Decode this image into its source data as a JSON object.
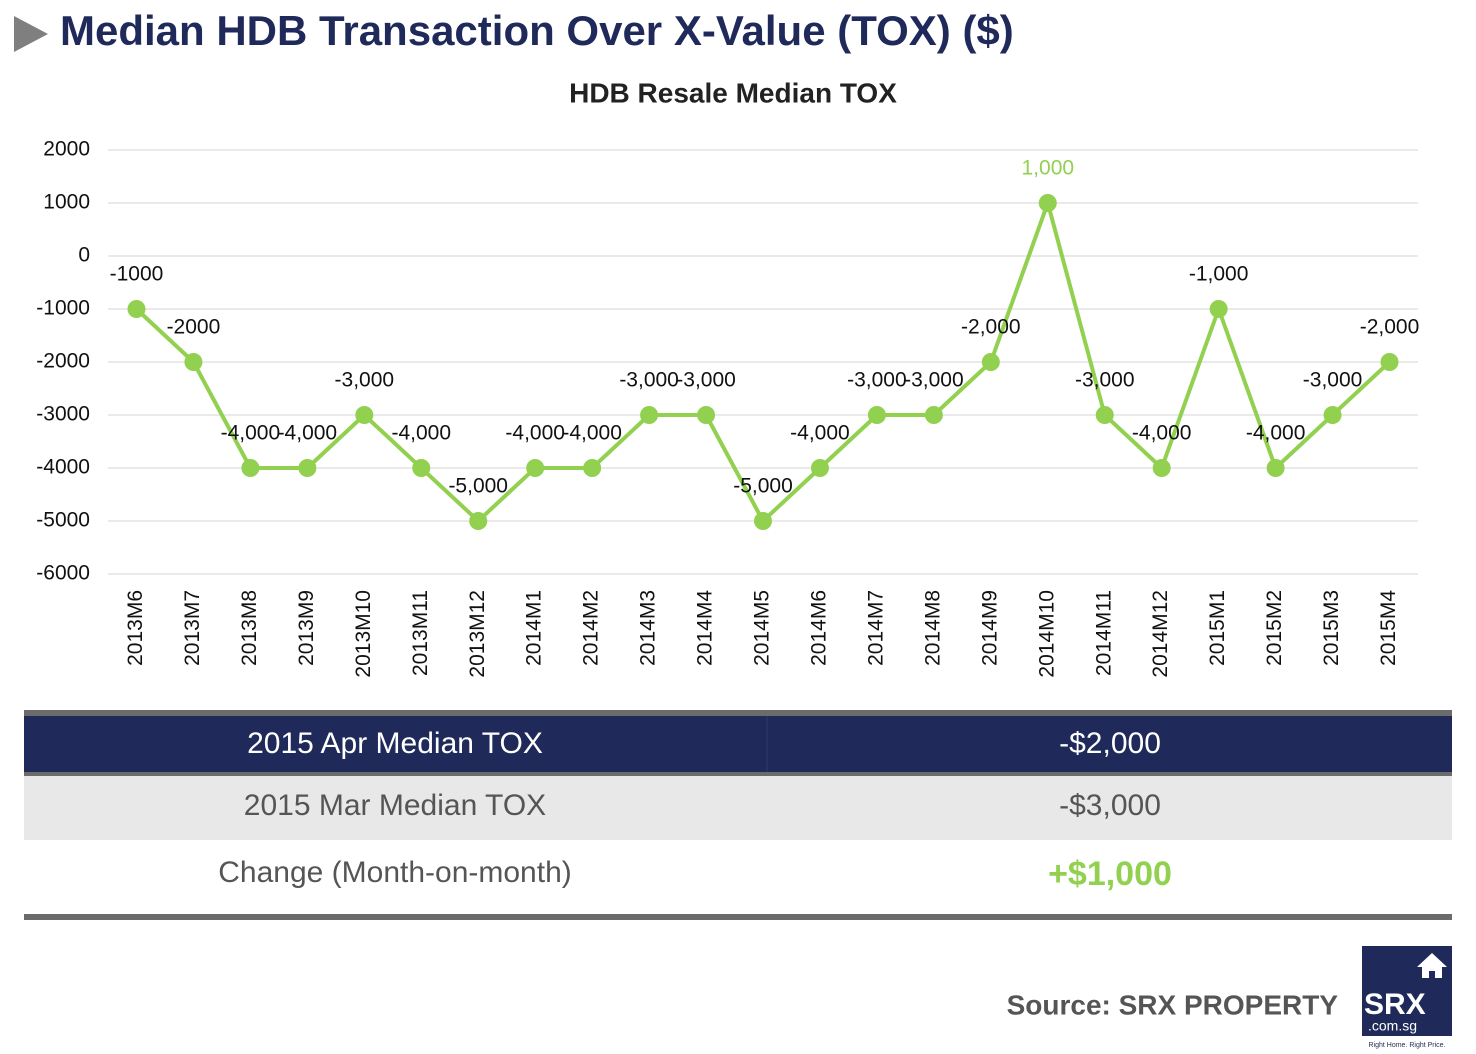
{
  "header": {
    "title": "Median HDB Transaction Over X-Value (TOX) ($)"
  },
  "chart_data": {
    "type": "line",
    "title": "HDB Resale Median TOX",
    "categories": [
      "2013M6",
      "2013M7",
      "2013M8",
      "2013M9",
      "2013M10",
      "2013M11",
      "2013M12",
      "2014M1",
      "2014M2",
      "2014M3",
      "2014M4",
      "2014M5",
      "2014M6",
      "2014M7",
      "2014M8",
      "2014M9",
      "2014M10",
      "2014M11",
      "2014M12",
      "2015M1",
      "2015M2",
      "2015M3",
      "2015M4"
    ],
    "values": [
      -1000,
      -2000,
      -4000,
      -4000,
      -3000,
      -4000,
      -5000,
      -4000,
      -4000,
      -3000,
      -3000,
      -5000,
      -4000,
      -3000,
      -3000,
      -2000,
      1000,
      -3000,
      -4000,
      -1000,
      -4000,
      -3000,
      -2000
    ],
    "value_labels": [
      "-1000",
      "-2000",
      "-4,000",
      "-4,000",
      "-3,000",
      "-4,000",
      "-5,000",
      "-4,000",
      "-4,000",
      "-3,000",
      "-3,000",
      "-5,000",
      "-4,000",
      "-3,000",
      "-3,000",
      "-2,000",
      "1,000",
      "-3,000",
      "-4,000",
      "-1,000",
      "-4,000",
      "-3,000",
      "-2,000"
    ],
    "color": "#92d050",
    "ylim": [
      -6000,
      2000
    ],
    "yticks": [
      2000,
      1000,
      0,
      -1000,
      -2000,
      -3000,
      -4000,
      -5000,
      -6000
    ],
    "grid": true
  },
  "table": {
    "rows": [
      [
        "2015 Apr Median TOX",
        "-$2,000"
      ],
      [
        "2015 Mar Median TOX",
        "-$3,000"
      ],
      [
        "Change (Month-on-month)",
        "+$1,000"
      ]
    ]
  },
  "footer": {
    "source": "Source:  SRX PROPERTY"
  },
  "logo": {
    "name": "SRX",
    "domain": ".com.sg",
    "tagline": "Right Home. Right Price."
  }
}
